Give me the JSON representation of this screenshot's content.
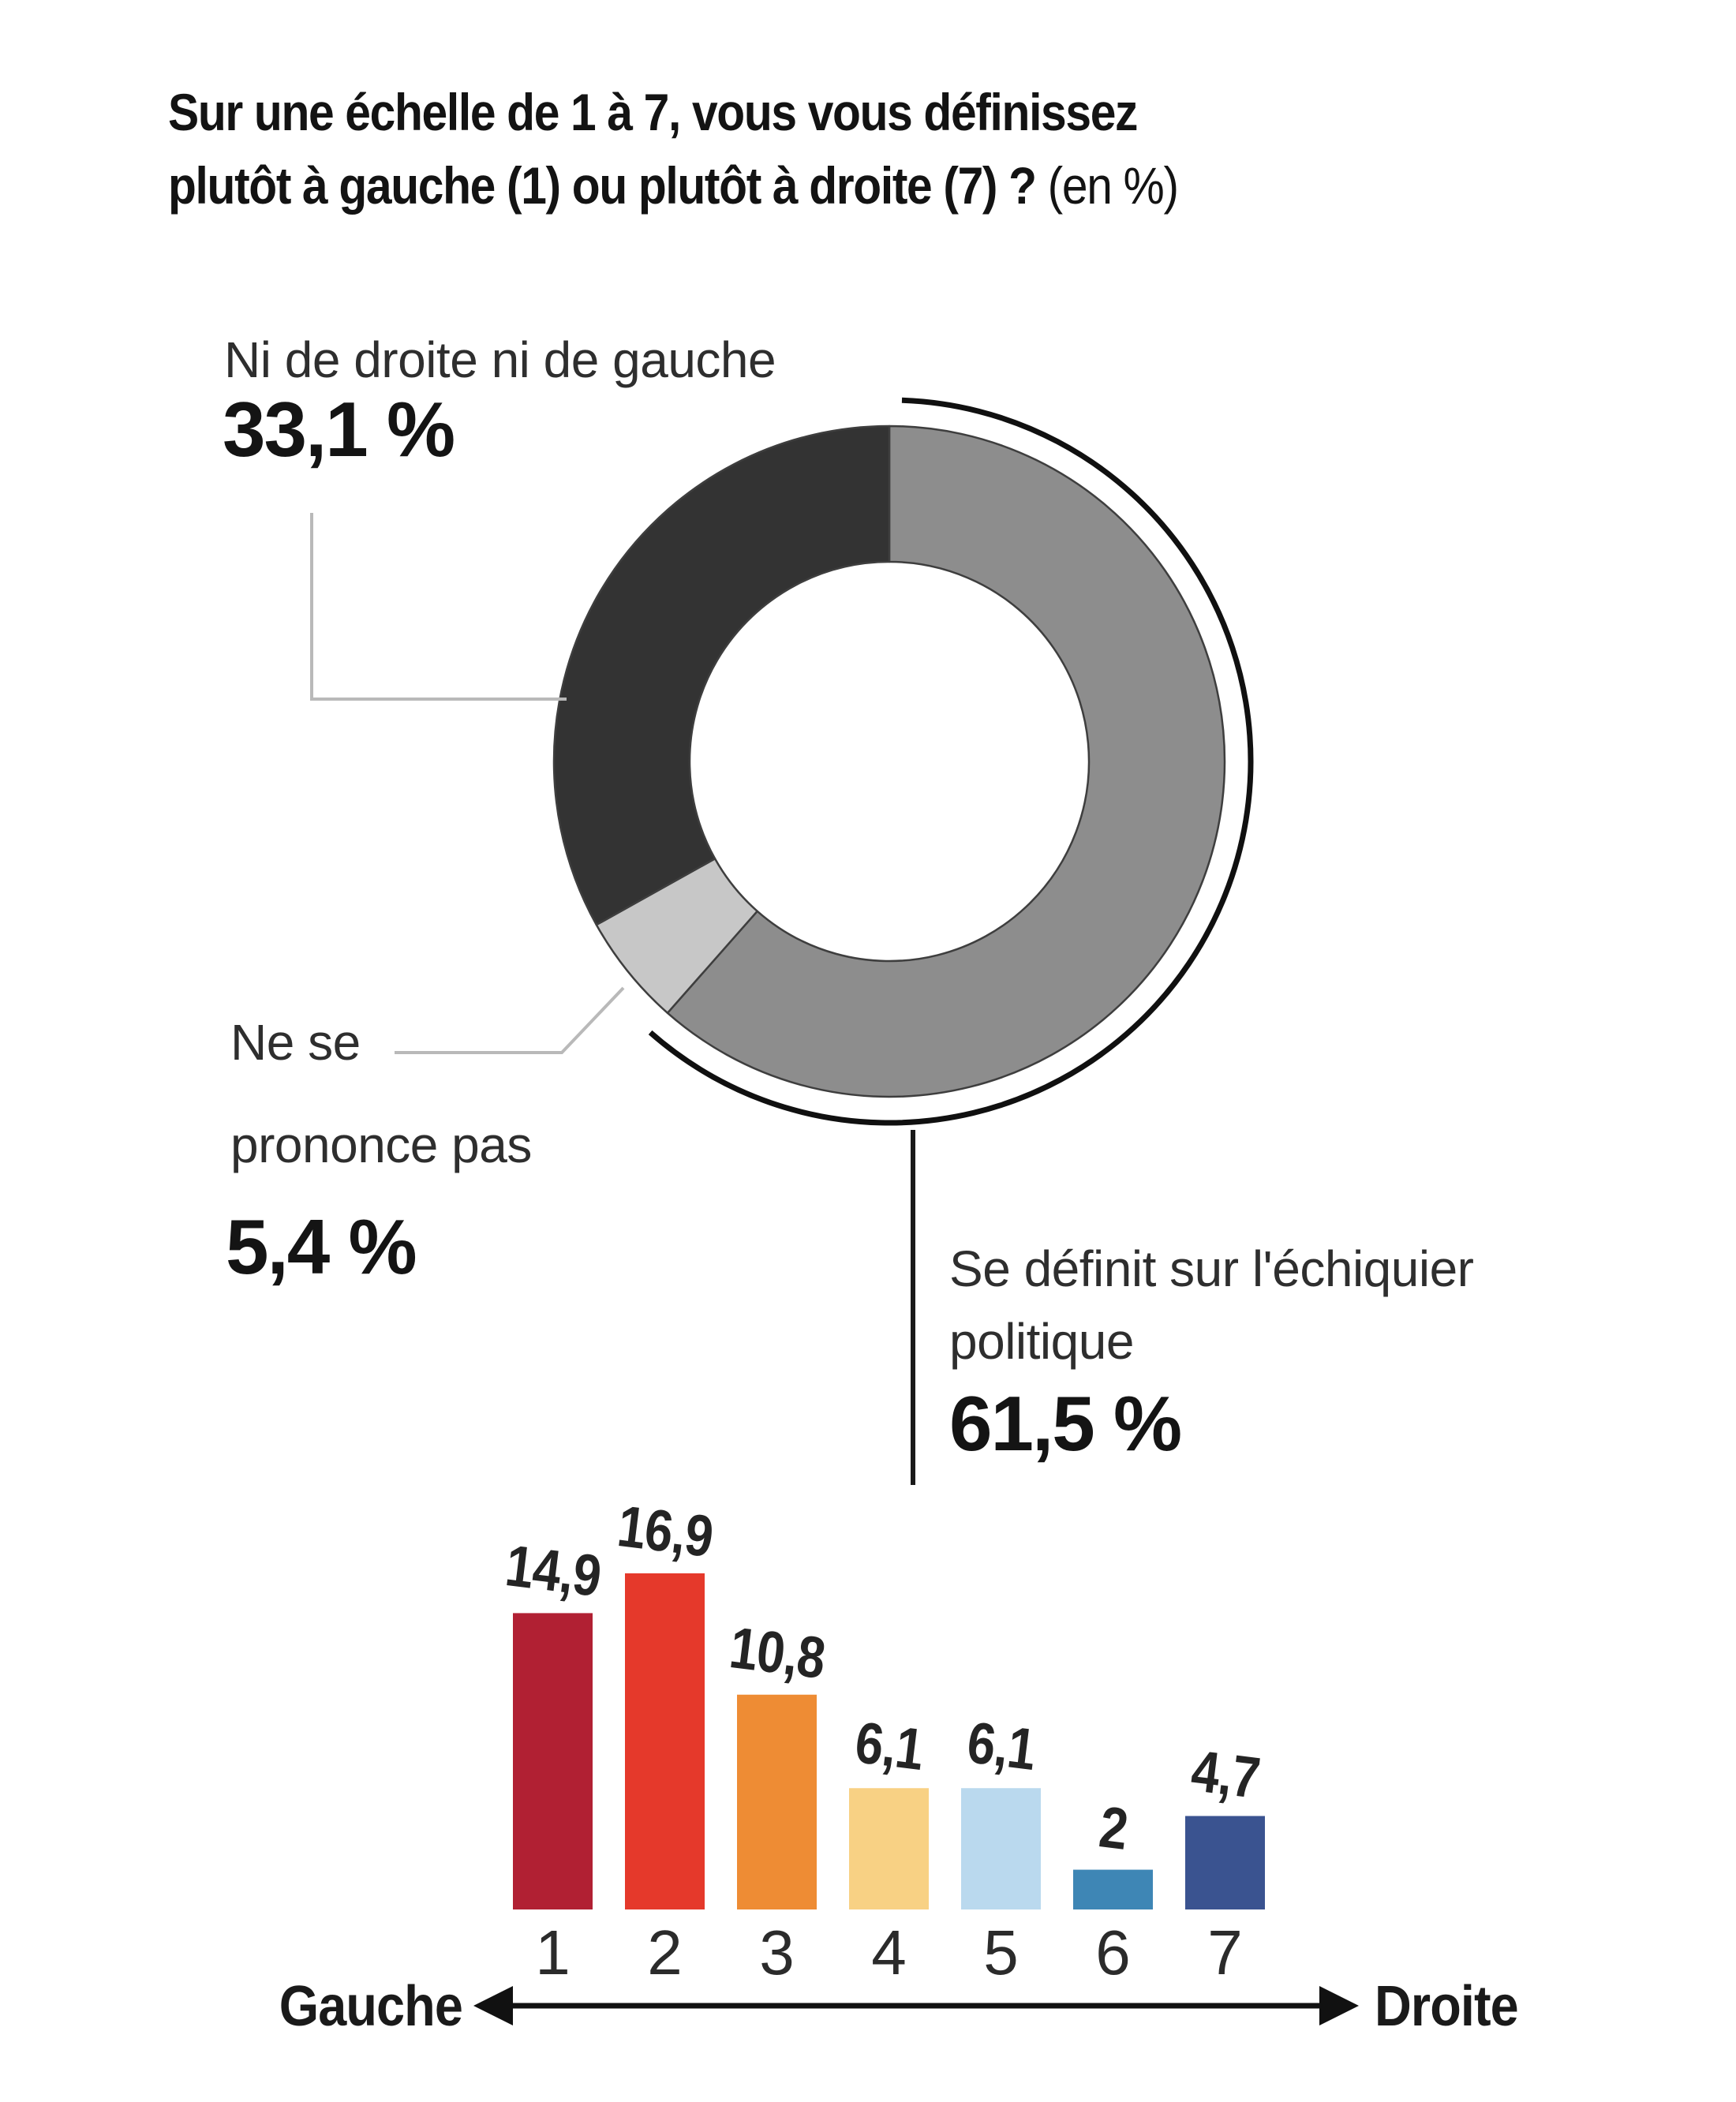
{
  "title": {
    "line1": "Sur une échelle de 1 à 7, vous vous définissez",
    "line2_main": "plutôt à gauche (1) ou plutôt à droite (7) ? ",
    "line2_suffix": "(en %)"
  },
  "annotations": {
    "neither": {
      "label": "Ni de droite ni de gauche",
      "value": "33,1 %"
    },
    "no_answer": {
      "label_line1": "Ne se",
      "label_line2": "prononce pas",
      "value": "5,4 %"
    },
    "defined": {
      "label_line1": "Se définit sur l'échiquier",
      "label_line2": "politique",
      "value": "61,5 %"
    }
  },
  "chart_data": [
    {
      "type": "pie",
      "subtype": "donut",
      "direction": "clockwise",
      "start_angle_deg": 0,
      "slices": [
        {
          "label": "Se définit sur l'échiquier politique",
          "value": 61.5,
          "display": "61,5 %",
          "color": "#8d8d8d"
        },
        {
          "label": "Ne se prononce pas",
          "value": 5.4,
          "display": "5,4 %",
          "color": "#c7c7c7"
        },
        {
          "label": "Ni de droite ni de gauche",
          "value": 33.1,
          "display": "33,1 %",
          "color": "#333333"
        }
      ],
      "highlight_arc": {
        "covers_slice": "Se définit sur l'échiquier politique",
        "color": "#101010"
      }
    },
    {
      "type": "bar",
      "categories": [
        "1",
        "2",
        "3",
        "4",
        "5",
        "6",
        "7"
      ],
      "values": [
        14.9,
        16.9,
        10.8,
        6.1,
        6.1,
        2,
        4.7
      ],
      "value_labels": [
        "14,9",
        "16,9",
        "10,8",
        "6,1",
        "6,1",
        "2",
        "4,7"
      ],
      "bar_colors": [
        "#b12033",
        "#e5392b",
        "#ee8c34",
        "#f8d184",
        "#bad9ee",
        "#3e86b5",
        "#3a5390"
      ],
      "xlabel_left": "Gauche",
      "xlabel_right": "Droite",
      "ylim": [
        0,
        18
      ],
      "grid": false,
      "legend": "none"
    }
  ],
  "axis": {
    "left": "Gauche",
    "right": "Droite"
  },
  "colors": {
    "background": "#ffffff",
    "donut_outline": "#3e3e3e",
    "leader_gray": "#b9b9b9",
    "leader_black": "#1a1a1a",
    "text_dark": "#131313",
    "text_body": "#2e2e2e"
  }
}
